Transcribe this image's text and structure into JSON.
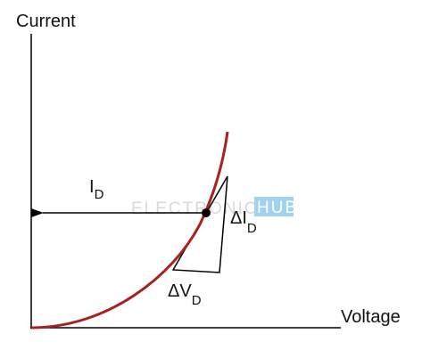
{
  "axes": {
    "y_label": "Current",
    "x_label": "Voltage"
  },
  "labels": {
    "current_point": {
      "symbol": "I",
      "subscript": "D"
    },
    "delta_current": {
      "symbol": "ΔI",
      "subscript": "D"
    },
    "delta_voltage": {
      "symbol": "ΔV",
      "subscript": "D"
    }
  },
  "watermark": {
    "brand": "ELECTRONICS",
    "highlight": "HUB"
  }
}
